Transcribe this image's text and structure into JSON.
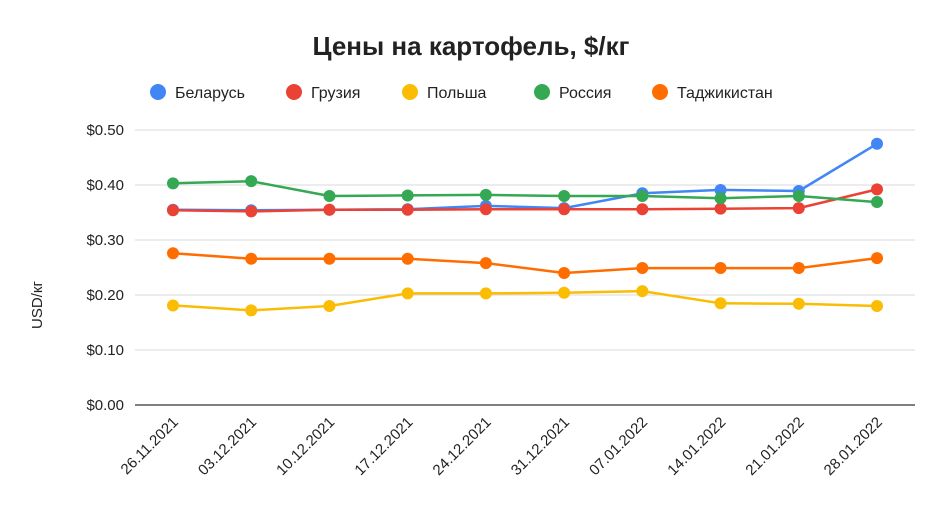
{
  "chart_data": {
    "type": "line",
    "title": "Цены на картофель, $/кг",
    "xlabel": "",
    "ylabel": "USD/кг",
    "ylim": [
      0,
      0.5
    ],
    "yticks": [
      "$0.00",
      "$0.10",
      "$0.20",
      "$0.30",
      "$0.40",
      "$0.50"
    ],
    "ytick_values": [
      0,
      0.1,
      0.2,
      0.3,
      0.4,
      0.5
    ],
    "grid": true,
    "legend_position": "top",
    "categories": [
      "26.11.2021",
      "03.12.2021",
      "10.12.2021",
      "17.12.2021",
      "24.12.2021",
      "31.12.2021",
      "07.01.2022",
      "14.01.2022",
      "21.01.2022",
      "28.01.2022"
    ],
    "series": [
      {
        "name": "Беларусь",
        "color": "#4285F4",
        "values": [
          0.355,
          0.354,
          0.355,
          0.356,
          0.362,
          0.358,
          0.385,
          0.391,
          0.389,
          0.475
        ]
      },
      {
        "name": "Грузия",
        "color": "#EA4335",
        "values": [
          0.354,
          0.352,
          0.355,
          0.355,
          0.356,
          0.356,
          0.356,
          0.357,
          0.358,
          0.392
        ]
      },
      {
        "name": "Польша",
        "color": "#FBBC04",
        "values": [
          0.181,
          0.172,
          0.18,
          0.203,
          0.203,
          0.204,
          0.207,
          0.185,
          0.184,
          0.18
        ]
      },
      {
        "name": "Россия",
        "color": "#34A853",
        "values": [
          0.403,
          0.407,
          0.38,
          0.381,
          0.382,
          0.38,
          0.38,
          0.376,
          0.38,
          0.369
        ]
      },
      {
        "name": "Таджикистан",
        "color": "#FF6D01",
        "values": [
          0.276,
          0.266,
          0.266,
          0.266,
          0.258,
          0.24,
          0.249,
          0.249,
          0.249,
          0.267
        ]
      }
    ]
  }
}
